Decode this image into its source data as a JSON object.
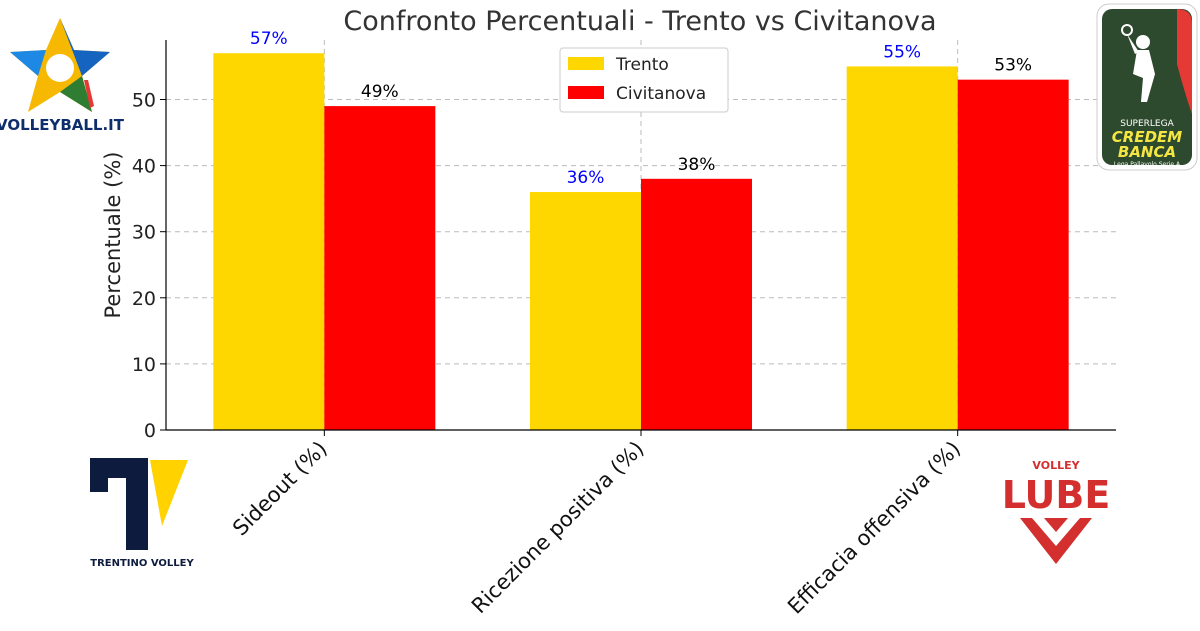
{
  "chart_data": {
    "type": "bar",
    "title": "Confronto Percentuali - Trento vs Civitanova",
    "ylabel": "Percentuale (%)",
    "xlabel": "",
    "categories": [
      "Sideout (%)",
      "Ricezione positiva (%)",
      "Efficacia offensiva (%)"
    ],
    "series": [
      {
        "name": "Trento",
        "color": "#FFD700",
        "label_color": "#0000FF",
        "values": [
          57,
          36,
          55
        ],
        "labels": [
          "57%",
          "36%",
          "55%"
        ]
      },
      {
        "name": "Civitanova",
        "color": "#FF0000",
        "label_color": "#000000",
        "values": [
          49,
          38,
          53
        ],
        "labels": [
          "49%",
          "38%",
          "53%"
        ]
      }
    ],
    "ylim": [
      0,
      59
    ],
    "yticks": [
      0,
      10,
      20,
      30,
      40,
      50
    ],
    "grid": true,
    "legend_position": "top-center"
  },
  "logos": {
    "volleyball_it": {
      "text": "VOLLEYBALL.IT",
      "icon": "star-logo-icon"
    },
    "superlega": {
      "line1": "SUPERLEGA",
      "line2": "CREDEM",
      "line3": "BANCA",
      "line4": "Lega Pallavolo Serie A",
      "icon": "superlega-player-icon"
    },
    "trentino": {
      "text": "TRENTINO VOLLEY",
      "icon": "trentino-tv-icon"
    },
    "lube": {
      "line1": "VOLLEY",
      "line2": "LUBE",
      "icon": "lube-chevron-icon"
    }
  }
}
